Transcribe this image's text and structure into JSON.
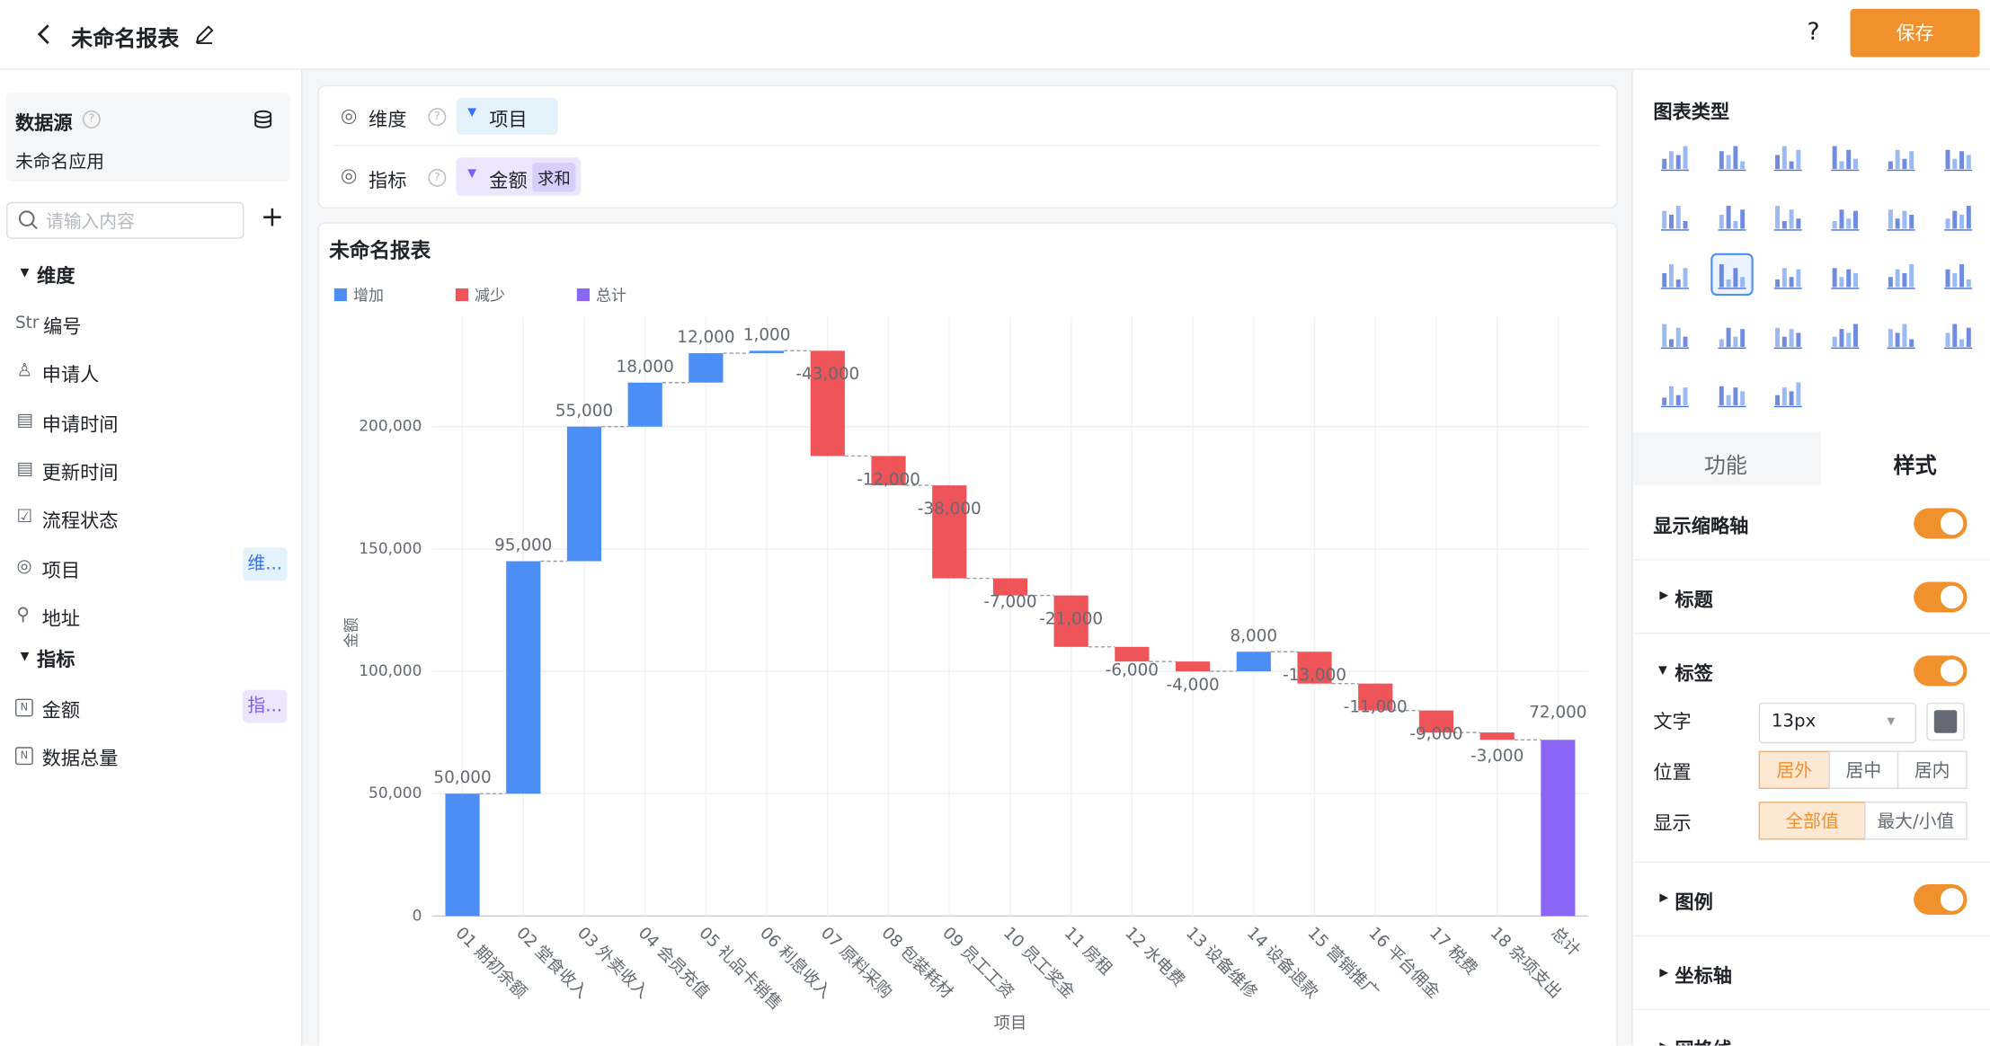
{
  "header": {
    "title": "未命名报表",
    "help": "?",
    "save": "保存"
  },
  "sidebar": {
    "source_title": "数据源",
    "source_name": "未命名应用",
    "search_placeholder": "请输入内容",
    "dim_title": "维度",
    "dims": [
      {
        "prefix": "Str",
        "label": "编号"
      },
      {
        "label": "申请人"
      },
      {
        "label": "申请时间"
      },
      {
        "label": "更新时间"
      },
      {
        "label": "流程状态"
      },
      {
        "label": "项目",
        "tag": "维..."
      },
      {
        "label": "地址"
      }
    ],
    "metric_title": "指标",
    "metrics": [
      {
        "label": "金额",
        "tag": "指..."
      },
      {
        "label": "数据总量"
      }
    ]
  },
  "query": {
    "dim_label": "维度",
    "dim_value": "项目",
    "metric_label": "指标",
    "metric_value": "金额",
    "metric_agg": "求和"
  },
  "panel": {
    "chart_types_title": "图表类型",
    "tabs": [
      "功能",
      "样式"
    ],
    "thumb_axis": "显示缩略轴",
    "title_section": "标题",
    "label_section": "标签",
    "text_label": "文字",
    "text_size": "13px",
    "position_label": "位置",
    "position_options": [
      "居外",
      "居中",
      "居内"
    ],
    "show_label": "显示",
    "show_options": [
      "全部值",
      "最大/小值"
    ],
    "legend_section": "图例",
    "axis_section": "坐标轴",
    "grid_section": "网格线"
  },
  "chart_data": {
    "type": "waterfall",
    "title": "未命名报表",
    "x_label": "项目",
    "y_label": "金额",
    "legend": [
      {
        "name": "增加",
        "color": "#4b8ef5"
      },
      {
        "name": "减少",
        "color": "#ef5459"
      },
      {
        "name": "总计",
        "color": "#8b65f5"
      }
    ],
    "categories": [
      "01 期初余额",
      "02 堂食收入",
      "03 外卖收入",
      "04 会员充值",
      "05 礼品卡销售",
      "06 利息收入",
      "07 原料采购",
      "08 包装耗材",
      "09 员工工资",
      "10 员工奖金",
      "11 房租",
      "12 水电费",
      "13 设备维修",
      "14 设备退款",
      "15 营销推广",
      "16 平台佣金",
      "17 税费",
      "18 杂项支出"
    ],
    "values": [
      50000,
      95000,
      55000,
      18000,
      12000,
      1000,
      -43000,
      -12000,
      -38000,
      -7000,
      -21000,
      -6000,
      -4000,
      8000,
      -13000,
      -11000,
      -9000,
      -3000
    ],
    "value_labels": [
      "50,000",
      "95,000",
      "55,000",
      "18,000",
      "12,000",
      "1,000",
      "-43,000",
      "-12,000",
      "-38,000",
      "-7,000",
      "-21,000",
      "-6,000",
      "-4,000",
      "8,000",
      "-13,000",
      "-11,000",
      "-9,000",
      "-3,000"
    ],
    "total": {
      "label": "总计",
      "value": 72000,
      "value_label": "72,000"
    },
    "ylim": [
      0,
      250000
    ],
    "yticks": [
      0,
      {
        "value": 50000,
        "label": "50,000"
      },
      {
        "value": 100000,
        "label": "100,000"
      },
      {
        "value": 150000,
        "label": "150,000"
      },
      {
        "value": 200000,
        "label": "200,000"
      }
    ],
    "grid": true
  }
}
